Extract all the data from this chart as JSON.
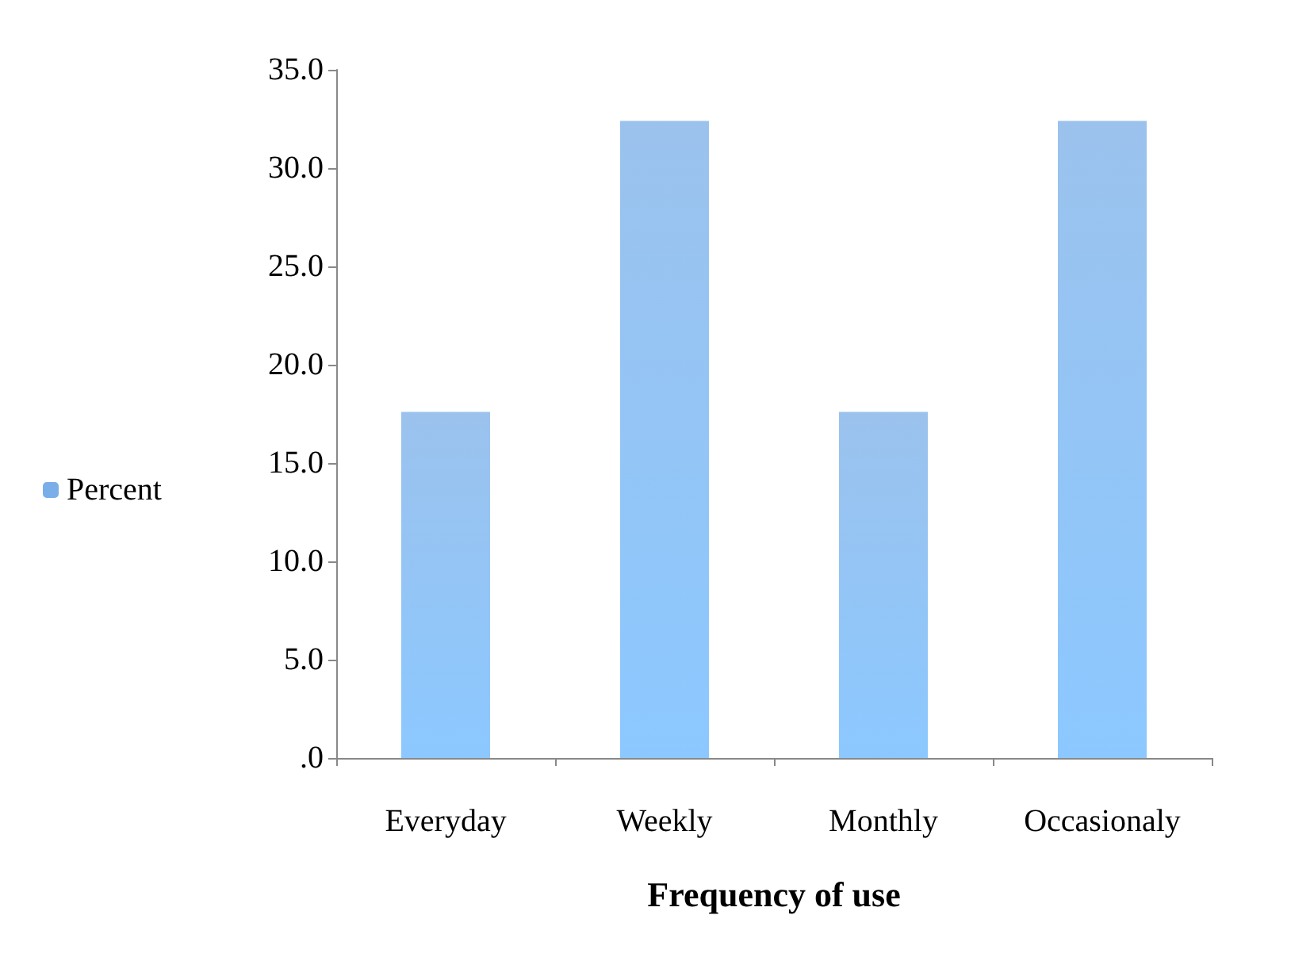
{
  "chart_data": {
    "type": "bar",
    "xlabel": "Frequency of use",
    "categories": [
      "Everyday",
      "Weekly",
      "Monthly",
      "Occasionaly"
    ],
    "series": [
      {
        "name": "Percent",
        "color": "#7aaee8",
        "values": [
          17.6,
          32.4,
          17.6,
          32.4
        ]
      }
    ],
    "ylim": [
      0,
      35
    ],
    "yticks": [
      {
        "value": 0,
        "label": ".0"
      },
      {
        "value": 5,
        "label": "5.0"
      },
      {
        "value": 10,
        "label": "10.0"
      },
      {
        "value": 15,
        "label": "15.0"
      },
      {
        "value": 20,
        "label": "20.0"
      },
      {
        "value": 25,
        "label": "25.0"
      },
      {
        "value": 30,
        "label": "30.0"
      },
      {
        "value": 35,
        "label": "35.0"
      }
    ],
    "grid": false,
    "legend": "left"
  }
}
